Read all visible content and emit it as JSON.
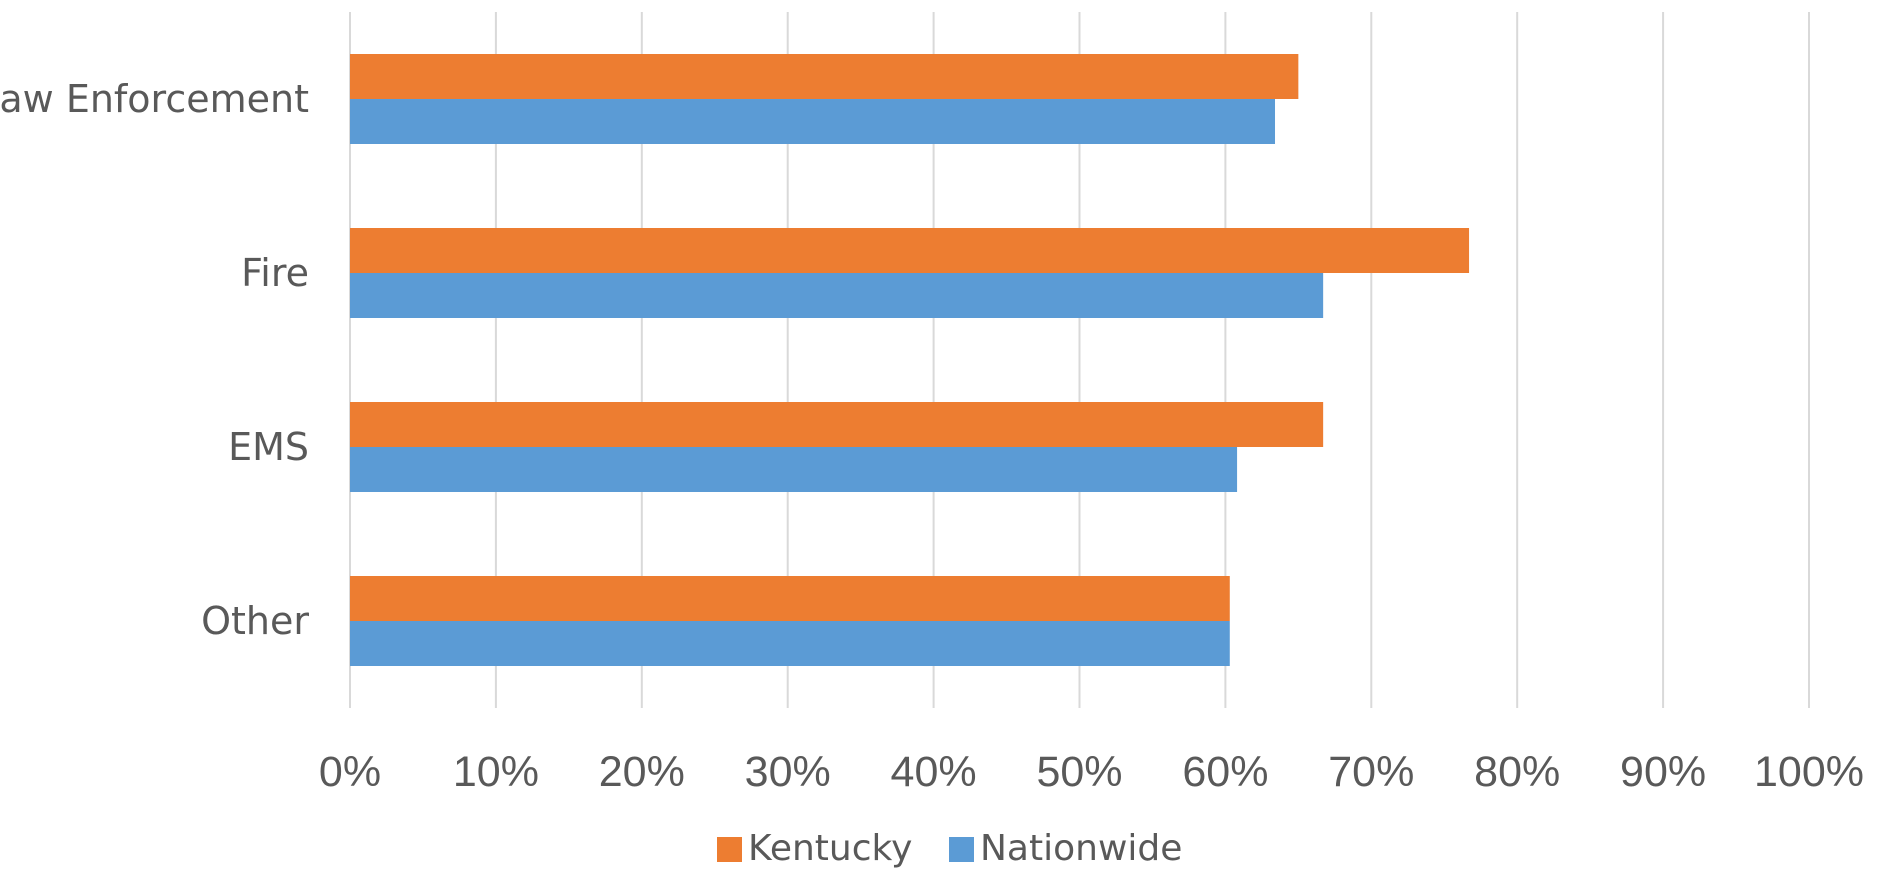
{
  "chart_data": {
    "type": "bar",
    "orientation": "horizontal",
    "title": "",
    "xlabel": "",
    "ylabel": "",
    "categories": [
      "Law Enforcement",
      "Fire",
      "EMS",
      "Other"
    ],
    "series": [
      {
        "name": "Kentucky",
        "color": "#ed7d31",
        "values": [
          65,
          76.7,
          66.7,
          60.3
        ]
      },
      {
        "name": "Nationwide",
        "color": "#5b9bd5",
        "values": [
          63.4,
          66.7,
          60.8,
          60.3
        ]
      }
    ],
    "xlim": [
      0,
      100
    ],
    "x_ticks": [
      "0%",
      "10%",
      "20%",
      "30%",
      "40%",
      "50%",
      "60%",
      "70%",
      "80%",
      "90%",
      "100%"
    ],
    "grid": "vertical",
    "legend": "bottom-center",
    "colors": {
      "text": "#595959",
      "grid": "#d9d9d9"
    }
  }
}
